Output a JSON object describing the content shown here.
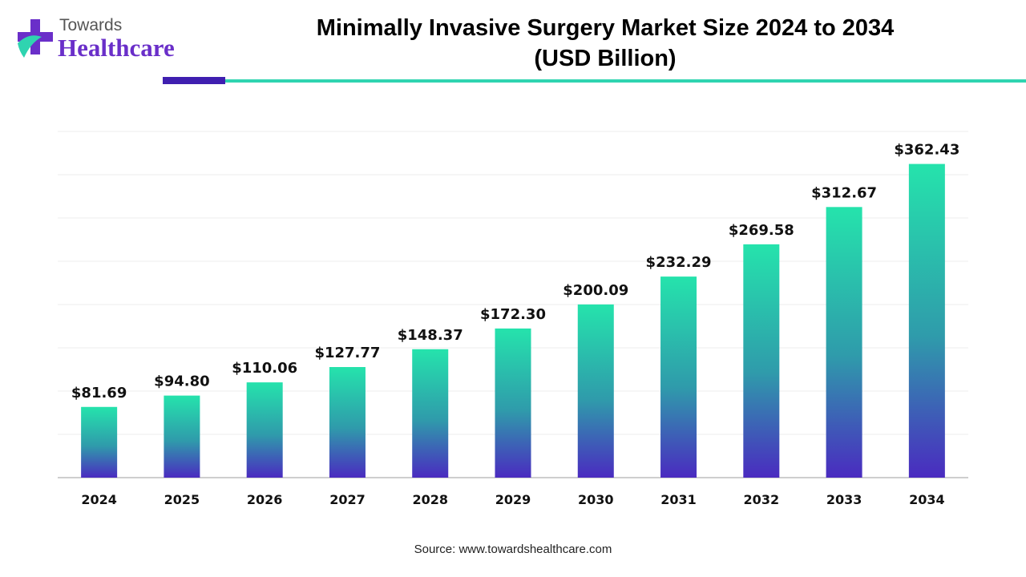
{
  "header": {
    "logo_top": "Towards",
    "logo_bottom": "Healthcare",
    "title_line1": "Minimally Invasive Surgery Market Size 2024 to 2034",
    "title_line2": "(USD Billion)"
  },
  "source": "Source: www.towardshealthcare.com",
  "colors": {
    "bar_top": "#25e3ac",
    "bar_mid": "#2f9bab",
    "bar_bottom": "#4a2bc0",
    "accent_purple": "#3f1fb0",
    "accent_teal": "#2fd4b0"
  },
  "chart_data": {
    "type": "bar",
    "title": "Minimally Invasive Surgery Market Size 2024 to 2034 (USD Billion)",
    "categories": [
      "2024",
      "2025",
      "2026",
      "2027",
      "2028",
      "2029",
      "2030",
      "2031",
      "2032",
      "2033",
      "2034"
    ],
    "values": [
      81.69,
      94.8,
      110.06,
      127.77,
      148.37,
      172.3,
      200.09,
      232.29,
      269.58,
      312.67,
      362.43
    ],
    "labels": [
      "$81.69",
      "$94.80",
      "$110.06",
      "$127.77",
      "$148.37",
      "$172.30",
      "$200.09",
      "$232.29",
      "$269.58",
      "$312.67",
      "$362.43"
    ],
    "ylim": [
      0,
      400
    ],
    "grid": true
  }
}
